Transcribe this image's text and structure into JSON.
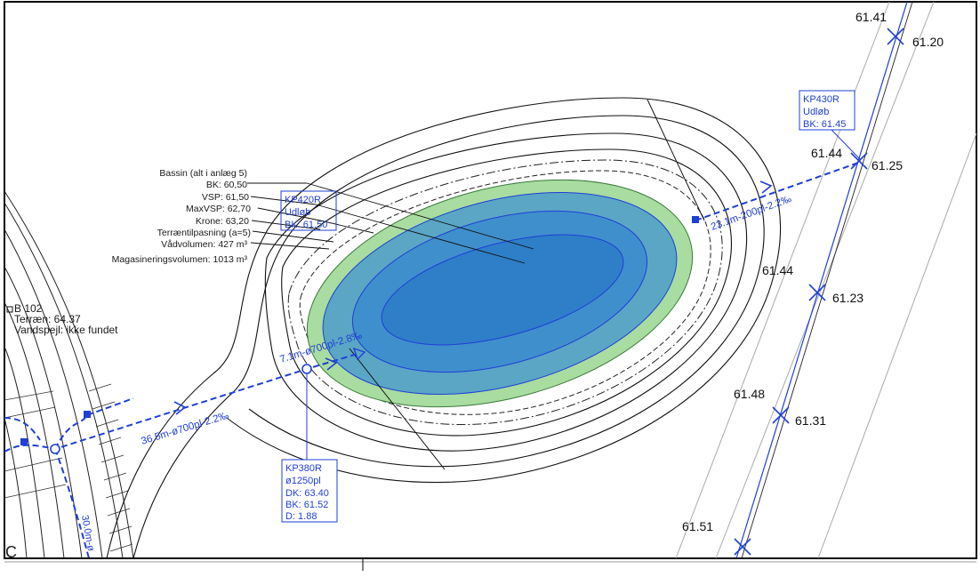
{
  "basin": {
    "callout": [
      "Bassin (alt i anlæg 5)",
      "BK: 60,50",
      "VSP: 61,50",
      "MaxVSP: 62,70",
      "Krone: 63,20",
      "Terræntilpasning (a=5)",
      "Vådvolumen: 427 m³",
      "Magasineringsvolumen: 1013 m³"
    ]
  },
  "wells": {
    "kp420r": [
      "KP420R",
      "Udløb",
      "BK: 61.50"
    ],
    "kp430r": [
      "KP430R",
      "Udløb",
      "BK: 61.45"
    ],
    "kp380r": [
      "KP380R",
      "ø1250pl",
      "DK: 63.40",
      "BK: 61.52",
      "D:  1.88"
    ]
  },
  "pipes": {
    "pipe_inlet_long": "36.5m-ø700pl-2.2‰",
    "pipe_inlet_short": "7.1m-ø700pl-2.8‰",
    "pipe_outlet": "23.1m-200pl-2.2‰",
    "pipe_vertical": "30.0m-ø"
  },
  "borehole": [
    "B 102",
    "Terræn: 64.37",
    "Vandspejl: ikke fundet"
  ],
  "elevations": {
    "left": [
      "61.41",
      "61.44",
      "61.44",
      "61.48",
      "61.51"
    ],
    "right": [
      "61.20",
      "61.25",
      "61.23",
      "61.31"
    ]
  },
  "misc": {
    "corner_letter": "C"
  },
  "colors": {
    "pipe_blue": "#1f3fd6",
    "basin_outer_green": "#a8dca0",
    "basin_mid": "#5aa6c4",
    "basin_inner": "#3f8fcc",
    "basin_core": "#2e7ec8"
  }
}
